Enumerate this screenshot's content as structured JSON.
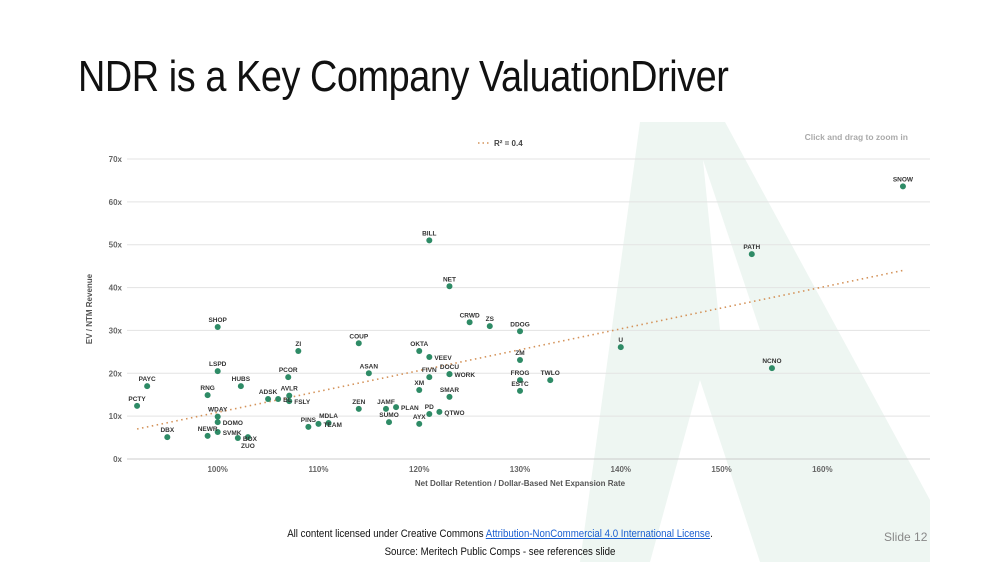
{
  "slide": {
    "title": "NDR is a Key Company ValuationDriver",
    "footer_prefix": "All content licensed under Creative Commons ",
    "footer_link": "Attribution-NonCommercial 4.0 International License",
    "footer_suffix": ".",
    "source": "Source: Meritech Public Comps - see references slide",
    "slide_number": "Slide 12"
  },
  "chart_data": {
    "type": "scatter",
    "hint": "Click and drag to zoom in",
    "xlabel": "Net Dollar Retention / Dollar-Based Net Expansion Rate",
    "ylabel": "EV / NTM Revenue",
    "xlim": [
      91,
      168.7
    ],
    "ylim": [
      0,
      70
    ],
    "x_ticks": [
      {
        "v": 100,
        "label": "100%"
      },
      {
        "v": 110,
        "label": "110%"
      },
      {
        "v": 120,
        "label": "120%"
      },
      {
        "v": 130,
        "label": "130%"
      },
      {
        "v": 140,
        "label": "140%"
      },
      {
        "v": 150,
        "label": "150%"
      },
      {
        "v": 160,
        "label": "160%"
      }
    ],
    "y_ticks": [
      {
        "v": 0,
        "label": "0x"
      },
      {
        "v": 10,
        "label": "10x"
      },
      {
        "v": 20,
        "label": "20x"
      },
      {
        "v": 30,
        "label": "30x"
      },
      {
        "v": 40,
        "label": "40x"
      },
      {
        "v": 50,
        "label": "50x"
      },
      {
        "v": 60,
        "label": "60x"
      },
      {
        "v": 70,
        "label": "70x"
      }
    ],
    "grid": true,
    "legend": {
      "position": "top-center",
      "label": "R² = 0.4"
    },
    "colors": {
      "point": "#2e8b66",
      "trend": "#d4935a",
      "grid": "#e3e3e3",
      "watermark": "#eef6f2"
    },
    "trendline": {
      "x": [
        92,
        168
      ],
      "y": [
        7.0,
        44.0
      ]
    },
    "points": [
      {
        "label": "SNOW",
        "x": 168,
        "y": 63.6
      },
      {
        "label": "PATH",
        "x": 153,
        "y": 47.8
      },
      {
        "label": "NCNO",
        "x": 155,
        "y": 21.2
      },
      {
        "label": "U",
        "x": 140,
        "y": 26.1
      },
      {
        "label": "BILL",
        "x": 121,
        "y": 51.0
      },
      {
        "label": "NET",
        "x": 123,
        "y": 40.3
      },
      {
        "label": "CRWD",
        "x": 125,
        "y": 31.9
      },
      {
        "label": "ZS",
        "x": 127,
        "y": 31.0
      },
      {
        "label": "DDOG",
        "x": 130,
        "y": 29.8
      },
      {
        "label": "OKTA",
        "x": 120,
        "y": 25.2
      },
      {
        "label": "VEEV",
        "x": 121,
        "y": 23.8
      },
      {
        "label": "ZM",
        "x": 130,
        "y": 23.1
      },
      {
        "label": "DOCU",
        "x": 123,
        "y": 19.8,
        "dy": -16
      },
      {
        "label": "WORK",
        "x": 123,
        "y": 19.8
      },
      {
        "label": "FIVN",
        "x": 121,
        "y": 19.1
      },
      {
        "label": "FROG",
        "x": 130,
        "y": 18.4
      },
      {
        "label": "TWLO",
        "x": 133,
        "y": 18.4
      },
      {
        "label": "ESTC",
        "x": 130,
        "y": 15.9
      },
      {
        "label": "XM",
        "x": 120,
        "y": 16.1
      },
      {
        "label": "SMAR",
        "x": 123,
        "y": 14.5
      },
      {
        "label": "PD",
        "x": 121,
        "y": 10.5
      },
      {
        "label": "QTWO",
        "x": 122,
        "y": 11.0
      },
      {
        "label": "AYX",
        "x": 120,
        "y": 8.2
      },
      {
        "label": "JAMF",
        "x": 116.7,
        "y": 11.7
      },
      {
        "label": "PLAN",
        "x": 117.7,
        "y": 12.1
      },
      {
        "label": "SUMO",
        "x": 117,
        "y": 8.6
      },
      {
        "label": "ZEN",
        "x": 114,
        "y": 11.7
      },
      {
        "label": "ASAN",
        "x": 115,
        "y": 20.0
      },
      {
        "label": "COUP",
        "x": 114,
        "y": 27.0
      },
      {
        "label": "ZI",
        "x": 108,
        "y": 25.2
      },
      {
        "label": "PCOR",
        "x": 107,
        "y": 19.1
      },
      {
        "label": "AVLR",
        "x": 107.1,
        "y": 14.8,
        "dy": -12
      },
      {
        "label": "FSLY",
        "x": 107.1,
        "y": 13.5
      },
      {
        "label": "ADSK",
        "x": 105,
        "y": 14.0
      },
      {
        "label": "BL",
        "x": 106,
        "y": 14.0
      },
      {
        "label": "HUBS",
        "x": 102.3,
        "y": 17.0
      },
      {
        "label": "LSPD",
        "x": 100,
        "y": 20.5
      },
      {
        "label": "SHOP",
        "x": 100,
        "y": 30.8
      },
      {
        "label": "PAYC",
        "x": 93,
        "y": 17.0
      },
      {
        "label": "RNG",
        "x": 99,
        "y": 14.9
      },
      {
        "label": "PCTY",
        "x": 92,
        "y": 12.4
      },
      {
        "label": "WDAY",
        "x": 100,
        "y": 9.9
      },
      {
        "label": "DOMO",
        "x": 100,
        "y": 8.6
      },
      {
        "label": "SVMK",
        "x": 100,
        "y": 6.3
      },
      {
        "label": "NEWR",
        "x": 99,
        "y": 5.4
      },
      {
        "label": "DBX",
        "x": 95,
        "y": 5.1
      },
      {
        "label": "BOX",
        "x": 102,
        "y": 4.9
      },
      {
        "label": "ZUO",
        "x": 103,
        "y": 5.1
      },
      {
        "label": "PINS",
        "x": 109,
        "y": 7.5
      },
      {
        "label": "TEAM",
        "x": 110,
        "y": 8.2
      },
      {
        "label": "MDLA",
        "x": 111,
        "y": 8.4
      }
    ]
  }
}
